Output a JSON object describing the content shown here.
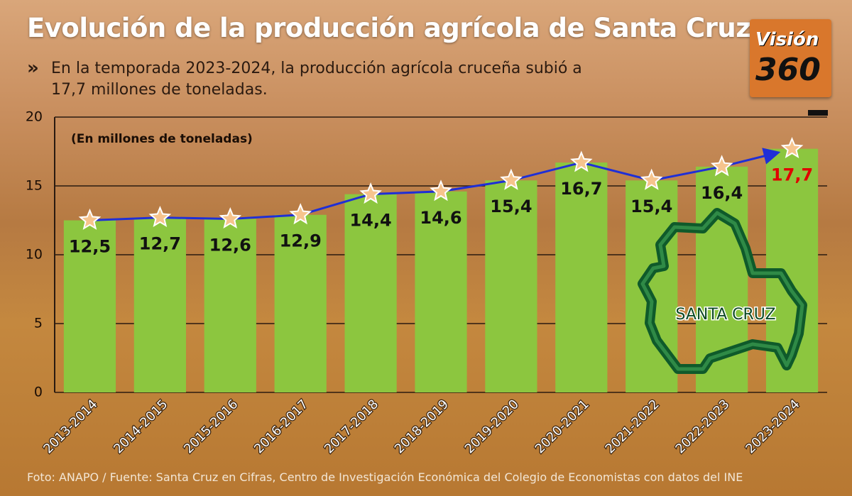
{
  "chart_data": {
    "type": "bar",
    "title": "Evolución de la producción agrícola de Santa Cruz",
    "subtitle": "En la temporada 2023-2024, la producción agrícola cruceña subió a 17,7 millones de toneladas.",
    "y_label": "(En millones de toneladas)",
    "source": "Foto: ANAPO / Fuente: Santa Cruz en Cifras, Centro de Investigación Económica del Colegio de Economistas con datos del INE",
    "logo": [
      "Visión",
      "360"
    ],
    "map_label": "SANTA CRUZ",
    "categories": [
      "2013-2014",
      "2014-2015",
      "2015-2016",
      "2016-2017",
      "2017-2018",
      "2018-2019",
      "2019-2020",
      "2020-2021",
      "2021-2022",
      "2022-2023",
      "2023-2024"
    ],
    "values": [
      12.5,
      12.7,
      12.6,
      12.9,
      14.4,
      14.6,
      15.4,
      16.7,
      15.4,
      16.4,
      17.7
    ],
    "value_labels": [
      "12,5",
      "12,7",
      "12,6",
      "12,9",
      "14,4",
      "14,6",
      "15,4",
      "16,7",
      "15,4",
      "16,4",
      "17,7"
    ],
    "color": "#8cc63f",
    "line_color": "#1f2fd6",
    "ylim": [
      0,
      20
    ],
    "yticks": [
      0,
      5,
      10,
      15,
      20
    ],
    "grid": true
  }
}
